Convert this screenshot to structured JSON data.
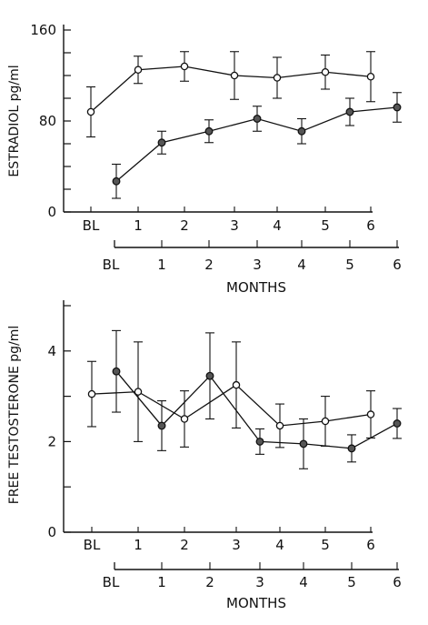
{
  "chart_data": [
    {
      "type": "line",
      "ylabel": "ESTRADIOL pg/ml",
      "xlabel": "MONTHS",
      "ylim": [
        0,
        160
      ],
      "y_ticks": [
        0,
        80,
        160
      ],
      "y_tick_labels": [
        "0",
        "80",
        "160"
      ],
      "top_axis_labels": [
        "BL",
        "1",
        "2",
        "3",
        "4",
        "5",
        "6"
      ],
      "bottom_axis_labels": [
        "BL",
        "1",
        "2",
        "3",
        "4",
        "5",
        "6"
      ],
      "series": [
        {
          "marker": "open-circle",
          "axis": "top",
          "x": [
            "BL",
            "1",
            "2",
            "3",
            "4",
            "5",
            "6"
          ],
          "y": [
            88,
            125,
            128,
            120,
            118,
            123,
            119
          ],
          "err": [
            22,
            12,
            13,
            21,
            18,
            15,
            22
          ]
        },
        {
          "marker": "filled-circle",
          "axis": "bottom",
          "x": [
            "BL",
            "1",
            "2",
            "3",
            "4",
            "5",
            "6"
          ],
          "y": [
            27,
            61,
            71,
            82,
            71,
            88,
            92
          ],
          "err": [
            15,
            10,
            10,
            11,
            11,
            12,
            13
          ]
        }
      ]
    },
    {
      "type": "line",
      "ylabel": "FREE TESTOSTERONE pg/ml",
      "xlabel": "MONTHS",
      "ylim": [
        0,
        5
      ],
      "y_ticks": [
        0,
        2,
        4
      ],
      "y_tick_labels": [
        "0",
        "2",
        "4"
      ],
      "top_axis_labels": [
        "BL",
        "1",
        "2",
        "3",
        "4",
        "5",
        "6"
      ],
      "bottom_axis_labels": [
        "BL",
        "1",
        "2",
        "3",
        "4",
        "5",
        "6"
      ],
      "series": [
        {
          "marker": "open-circle",
          "axis": "top",
          "x": [
            "BL",
            "1",
            "2",
            "3",
            "4",
            "5",
            "6"
          ],
          "y": [
            3.05,
            3.1,
            2.5,
            3.25,
            2.35,
            2.45,
            2.6
          ],
          "err": [
            0.72,
            1.1,
            0.62,
            0.95,
            0.48,
            0.55,
            0.52
          ]
        },
        {
          "marker": "filled-circle",
          "axis": "bottom",
          "x": [
            "BL",
            "1",
            "2",
            "3",
            "4",
            "5",
            "6"
          ],
          "y": [
            3.55,
            2.35,
            3.45,
            2.0,
            1.95,
            1.85,
            2.4
          ],
          "err": [
            0.9,
            0.55,
            0.95,
            0.28,
            0.55,
            0.3,
            0.33
          ]
        }
      ]
    }
  ]
}
